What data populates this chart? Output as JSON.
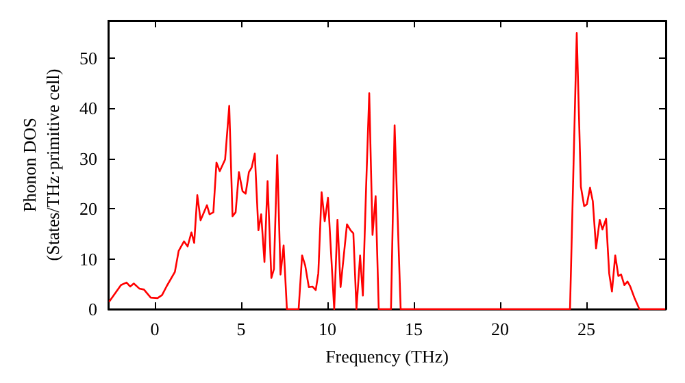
{
  "chart_data": {
    "type": "line",
    "xlabel": "Frequency (THz)",
    "ylabel": "Phonon DOS\n(States/THz·primitive cell)",
    "xlim": [
      -2.7,
      29.6
    ],
    "ylim": [
      0,
      57.5
    ],
    "xticks": [
      0,
      5,
      10,
      15,
      20,
      25
    ],
    "yticks": [
      0,
      10,
      20,
      30,
      40,
      50
    ],
    "grid": false,
    "marker": "none",
    "line_style": "solid",
    "series": [
      {
        "color": "#ff0000",
        "x": [
          -2.62,
          -1.96,
          -1.64,
          -1.43,
          -1.22,
          -0.9,
          -0.63,
          -0.24,
          0.16,
          0.42,
          0.69,
          1.16,
          1.38,
          1.69,
          1.9,
          2.12,
          2.28,
          2.46,
          2.65,
          3.02,
          3.17,
          3.39,
          3.57,
          3.76,
          4.07,
          4.31,
          4.5,
          4.68,
          4.87,
          5.08,
          5.26,
          5.45,
          5.61,
          5.79,
          6.0,
          6.16,
          6.35,
          6.53,
          6.75,
          6.9,
          7.09,
          7.28,
          7.46,
          7.65,
          8.33,
          8.53,
          8.71,
          8.92,
          9.13,
          9.32,
          9.47,
          9.66,
          9.84,
          10.03,
          10.39,
          10.58,
          10.76,
          11.13,
          11.34,
          11.5,
          11.68,
          11.89,
          12.05,
          12.24,
          12.42,
          12.61,
          12.79,
          12.97,
          13.68,
          13.89,
          14.24,
          24.05,
          24.44,
          24.68,
          24.87,
          25.03,
          25.21,
          25.37,
          25.56,
          25.77,
          25.93,
          26.14,
          26.32,
          26.48,
          26.67,
          26.85,
          27.01,
          27.2,
          27.38,
          27.54,
          27.8,
          28.07,
          29.52
        ],
        "values": [
          1.6,
          4.8,
          5.3,
          4.5,
          5.1,
          4.1,
          3.9,
          2.3,
          2.2,
          2.8,
          4.6,
          7.4,
          11.6,
          13.5,
          12.5,
          15.3,
          13.2,
          22.7,
          17.7,
          20.7,
          18.9,
          19.3,
          29.2,
          27.5,
          29.8,
          40.5,
          18.5,
          19.3,
          27.3,
          23.5,
          23,
          27.3,
          28.2,
          31,
          15.7,
          18.9,
          9.4,
          25.5,
          6.2,
          8,
          30.7,
          6.9,
          12.7,
          0,
          0,
          10.7,
          8.7,
          4.4,
          4.5,
          3.8,
          7.1,
          23.3,
          17.5,
          22.2,
          0,
          17.8,
          4.4,
          16.9,
          15.7,
          15.1,
          0,
          10.7,
          2.7,
          24.4,
          43,
          14.8,
          22.5,
          0,
          0,
          36.6,
          0,
          0,
          55,
          24.4,
          20.5,
          20.9,
          24.2,
          21.5,
          12.1,
          17.8,
          15.9,
          18,
          7.1,
          3.5,
          10.7,
          6.6,
          6.9,
          4.8,
          5.5,
          4.5,
          2.1,
          0,
          0
        ]
      }
    ]
  }
}
